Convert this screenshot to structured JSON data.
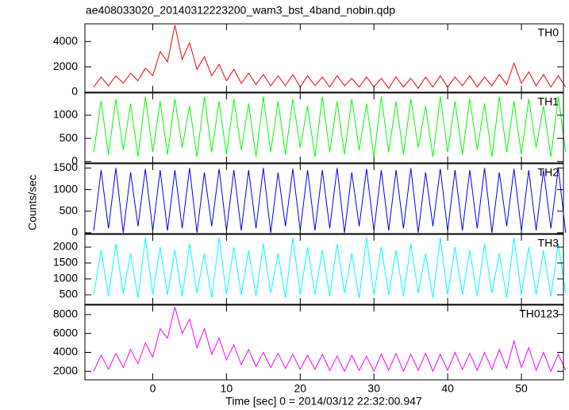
{
  "title": "ae408033020_20140312223200_wam3_bst_4band_nobin.qdp",
  "ylabel": "Counts/sec",
  "xlabel": "Time [sec] 0 = 2014/03/12 22:32:00.947",
  "chart_data": [
    {
      "type": "line",
      "xlim": [
        -9.2,
        55.7
      ],
      "xticks": [
        0,
        10,
        20,
        30,
        40,
        50
      ],
      "ylim": [
        0,
        5400
      ],
      "yticks": [
        0,
        2000,
        4000
      ],
      "x": [
        -8,
        -7,
        -6,
        -5,
        -4,
        -3,
        -2,
        -1,
        0,
        1,
        2,
        3,
        4,
        5,
        6,
        7,
        8,
        9,
        10,
        11,
        12,
        13,
        14,
        15,
        16,
        17,
        18,
        19,
        20,
        21,
        22,
        23,
        24,
        25,
        26,
        27,
        28,
        29,
        30,
        31,
        32,
        33,
        34,
        35,
        36,
        37,
        38,
        39,
        40,
        41,
        42,
        43,
        44,
        45,
        46,
        47,
        48,
        49,
        50,
        51,
        52,
        53,
        54,
        55,
        56
      ],
      "series": [
        {
          "name": "TH0",
          "color": "#ff0000",
          "values": [
            400,
            1200,
            500,
            1300,
            700,
            1500,
            900,
            1900,
            1300,
            3200,
            2400,
            5300,
            2600,
            3900,
            1800,
            2800,
            1300,
            2200,
            900,
            1800,
            700,
            1500,
            600,
            1400,
            500,
            1300,
            500,
            1400,
            400,
            1300,
            500,
            1200,
            400,
            1300,
            500,
            1100,
            400,
            1200,
            400,
            1100,
            300,
            1200,
            400,
            1100,
            300,
            1200,
            400,
            1300,
            400,
            1200,
            500,
            1300,
            400,
            1200,
            500,
            1400,
            600,
            2300,
            700,
            1600,
            500,
            1400,
            400,
            1300,
            400
          ]
        }
      ]
    },
    {
      "type": "line",
      "xlim": [
        -9.2,
        55.7
      ],
      "xticks": [
        0,
        10,
        20,
        30,
        40,
        50
      ],
      "ylim": [
        -30,
        1480
      ],
      "yticks": [
        0,
        500,
        1000
      ],
      "x": [
        -8,
        -7,
        -6,
        -5,
        -4,
        -3,
        -2,
        -1,
        0,
        1,
        2,
        3,
        4,
        5,
        6,
        7,
        8,
        9,
        10,
        11,
        12,
        13,
        14,
        15,
        16,
        17,
        18,
        19,
        20,
        21,
        22,
        23,
        24,
        25,
        26,
        27,
        28,
        29,
        30,
        31,
        32,
        33,
        34,
        35,
        36,
        37,
        38,
        39,
        40,
        41,
        42,
        43,
        44,
        45,
        46,
        47,
        48,
        49,
        50,
        51,
        52,
        53,
        54,
        55,
        56
      ],
      "series": [
        {
          "name": "TH1",
          "color": "#00ff00",
          "values": [
            200,
            1300,
            150,
            1350,
            250,
            1250,
            100,
            1400,
            200,
            1300,
            150,
            1350,
            300,
            1200,
            100,
            1400,
            200,
            1300,
            150,
            1350,
            250,
            1250,
            100,
            1400,
            200,
            1300,
            150,
            1350,
            300,
            1200,
            100,
            1400,
            200,
            1300,
            150,
            1350,
            250,
            1250,
            100,
            1400,
            200,
            1300,
            150,
            1350,
            300,
            1200,
            100,
            1400,
            200,
            1300,
            150,
            1350,
            250,
            1250,
            100,
            1400,
            200,
            1300,
            150,
            1350,
            300,
            1200,
            100,
            1400,
            200
          ]
        }
      ]
    },
    {
      "type": "line",
      "xlim": [
        -9.2,
        55.7
      ],
      "xticks": [
        0,
        10,
        20,
        30,
        40,
        50
      ],
      "ylim": [
        -20,
        1600
      ],
      "yticks": [
        0,
        500,
        1000,
        1500
      ],
      "x": [
        -8,
        -7,
        -6,
        -5,
        -4,
        -3,
        -2,
        -1,
        0,
        1,
        2,
        3,
        4,
        5,
        6,
        7,
        8,
        9,
        10,
        11,
        12,
        13,
        14,
        15,
        16,
        17,
        18,
        19,
        20,
        21,
        22,
        23,
        24,
        25,
        26,
        27,
        28,
        29,
        30,
        31,
        32,
        33,
        34,
        35,
        36,
        37,
        38,
        39,
        40,
        41,
        42,
        43,
        44,
        45,
        46,
        47,
        48,
        49,
        50,
        51,
        52,
        53,
        54,
        55,
        56
      ],
      "series": [
        {
          "name": "TH2",
          "color": "#0000ff",
          "values": [
            50,
            1450,
            100,
            1500,
            0,
            1400,
            150,
            1480,
            50,
            1450,
            50,
            1450,
            100,
            1500,
            0,
            1400,
            150,
            1480,
            50,
            1450,
            50,
            1450,
            100,
            1500,
            0,
            1400,
            150,
            1480,
            50,
            1450,
            50,
            1450,
            100,
            1500,
            0,
            1400,
            150,
            1480,
            50,
            1450,
            50,
            1450,
            100,
            1500,
            0,
            1400,
            150,
            1480,
            50,
            1450,
            50,
            1450,
            100,
            1500,
            0,
            1400,
            150,
            1480,
            50,
            1450,
            50,
            1450,
            100,
            1500,
            0
          ]
        }
      ]
    },
    {
      "type": "line",
      "xlim": [
        -9.2,
        55.7
      ],
      "xticks": [
        0,
        10,
        20,
        30,
        40,
        50
      ],
      "ylim": [
        200,
        2400
      ],
      "yticks": [
        500,
        1000,
        1500,
        2000
      ],
      "x": [
        -8,
        -7,
        -6,
        -5,
        -4,
        -3,
        -2,
        -1,
        0,
        1,
        2,
        3,
        4,
        5,
        6,
        7,
        8,
        9,
        10,
        11,
        12,
        13,
        14,
        15,
        16,
        17,
        18,
        19,
        20,
        21,
        22,
        23,
        24,
        25,
        26,
        27,
        28,
        29,
        30,
        31,
        32,
        33,
        34,
        35,
        36,
        37,
        38,
        39,
        40,
        41,
        42,
        43,
        44,
        45,
        46,
        47,
        48,
        49,
        50,
        51,
        52,
        53,
        54,
        55,
        56
      ],
      "series": [
        {
          "name": "TH3",
          "color": "#00ffff",
          "values": [
            500,
            1900,
            450,
            2100,
            550,
            1800,
            400,
            2300,
            500,
            2000,
            500,
            1900,
            450,
            2100,
            550,
            1800,
            400,
            2300,
            500,
            2000,
            500,
            1900,
            450,
            2100,
            550,
            1800,
            400,
            2300,
            500,
            2000,
            500,
            1900,
            450,
            2100,
            550,
            1800,
            400,
            2300,
            500,
            2000,
            500,
            1900,
            450,
            2100,
            550,
            1800,
            400,
            2300,
            500,
            2000,
            500,
            1900,
            450,
            2100,
            550,
            1800,
            400,
            2300,
            500,
            2000,
            500,
            1900,
            450,
            2100,
            550
          ]
        }
      ]
    },
    {
      "type": "line",
      "xlim": [
        -9.2,
        55.7
      ],
      "xticks": [
        0,
        10,
        20,
        30,
        40,
        50
      ],
      "ylim": [
        1100,
        9000
      ],
      "yticks": [
        2000,
        4000,
        6000,
        8000
      ],
      "x": [
        -8,
        -7,
        -6,
        -5,
        -4,
        -3,
        -2,
        -1,
        0,
        1,
        2,
        3,
        4,
        5,
        6,
        7,
        8,
        9,
        10,
        11,
        12,
        13,
        14,
        15,
        16,
        17,
        18,
        19,
        20,
        21,
        22,
        23,
        24,
        25,
        26,
        27,
        28,
        29,
        30,
        31,
        32,
        33,
        34,
        35,
        36,
        37,
        38,
        39,
        40,
        41,
        42,
        43,
        44,
        45,
        46,
        47,
        48,
        49,
        50,
        51,
        52,
        53,
        54,
        55,
        56
      ],
      "series": [
        {
          "name": "TH0123",
          "color": "#ff00ff",
          "values": [
            2000,
            3700,
            2200,
            3900,
            2400,
            4300,
            2800,
            5000,
            3500,
            6500,
            5500,
            8800,
            6000,
            7500,
            4500,
            6500,
            3800,
            5500,
            3200,
            4800,
            2700,
            4300,
            2500,
            4000,
            2400,
            3900,
            2300,
            3800,
            2200,
            3700,
            2200,
            3800,
            2100,
            3600,
            2000,
            3700,
            2100,
            3600,
            2000,
            3800,
            2100,
            3900,
            2000,
            3800,
            2100,
            3900,
            2000,
            3800,
            2100,
            4000,
            2200,
            3900,
            2100,
            4000,
            2200,
            4300,
            2300,
            5200,
            2400,
            4500,
            2100,
            4000,
            2000,
            3800,
            2100
          ]
        }
      ]
    }
  ]
}
